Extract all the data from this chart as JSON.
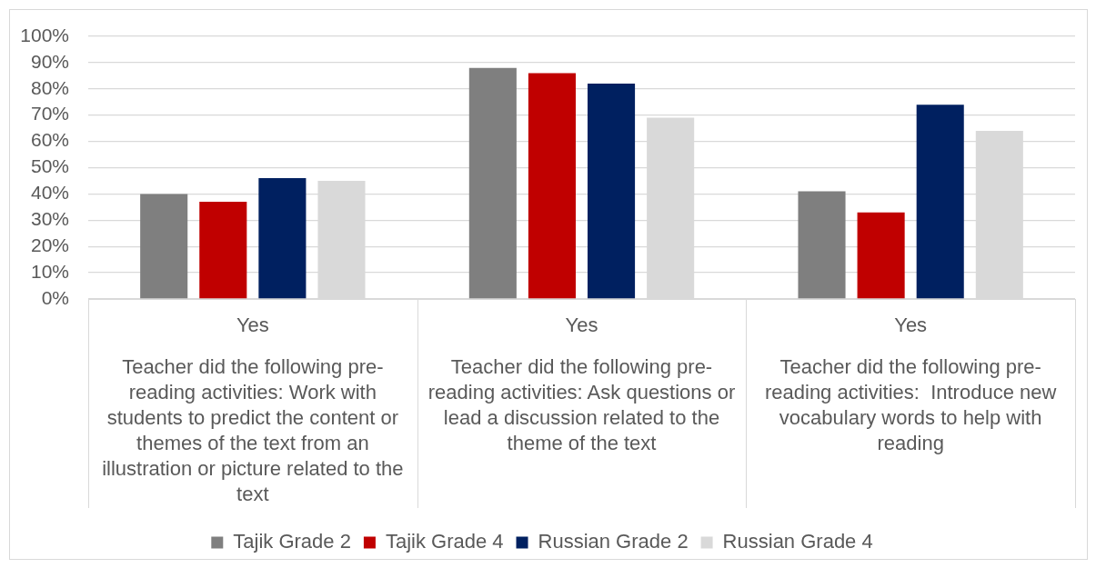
{
  "chart_data": {
    "type": "bar",
    "categories": [
      "Teacher did the following pre-reading activities: Work with students to predict the content or themes of the text from an illustration or picture related to the text",
      "Teacher did the following pre-reading activities: Ask questions or lead a discussion related to the theme of the text",
      "Teacher did the following pre-reading activities:  Introduce new vocabulary words to help with reading"
    ],
    "annotations": [
      "Yes",
      "Yes",
      "Yes"
    ],
    "series": [
      {
        "name": "Tajik Grade 2",
        "color": "#7f7f7f",
        "values": [
          40,
          88,
          41
        ]
      },
      {
        "name": "Tajik Grade 4",
        "color": "#c00000",
        "values": [
          37,
          86,
          33
        ]
      },
      {
        "name": "Russian Grade 2",
        "color": "#002060",
        "values": [
          46,
          82,
          74
        ]
      },
      {
        "name": "Russian Grade 4",
        "color": "#d9d9d9",
        "values": [
          45,
          69,
          64
        ]
      }
    ],
    "ylim": [
      0,
      100
    ],
    "yticks": [
      {
        "value": 0,
        "label": "0%"
      },
      {
        "value": 10,
        "label": "10%"
      },
      {
        "value": 20,
        "label": "20%"
      },
      {
        "value": 30,
        "label": "30%"
      },
      {
        "value": 40,
        "label": "40%"
      },
      {
        "value": 50,
        "label": "50%"
      },
      {
        "value": 60,
        "label": "60%"
      },
      {
        "value": 70,
        "label": "70%"
      },
      {
        "value": 80,
        "label": "80%"
      },
      {
        "value": 90,
        "label": "90%"
      },
      {
        "value": 100,
        "label": "100%"
      }
    ],
    "grid": "y",
    "legend": "bottom"
  }
}
